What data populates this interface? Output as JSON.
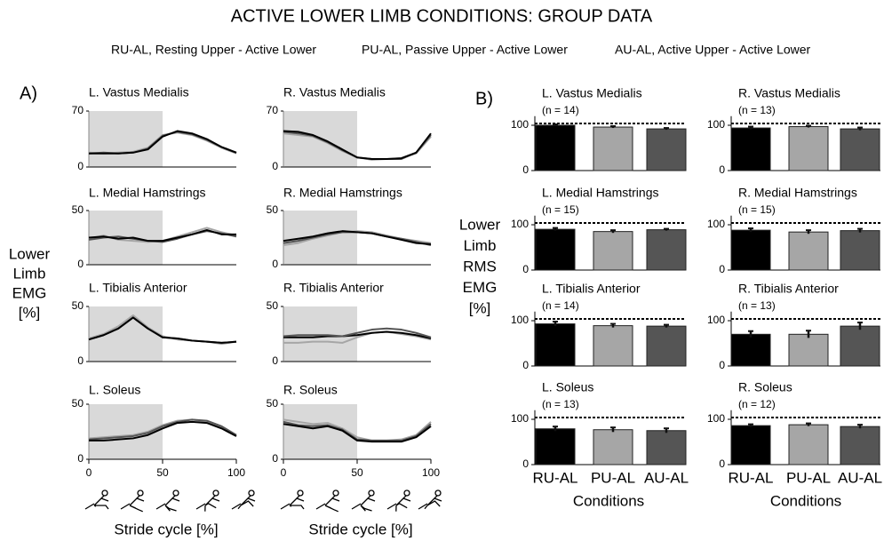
{
  "title": "ACTIVE LOWER LIMB CONDITIONS: GROUP DATA",
  "legend": [
    {
      "name": "RU-AL, Resting Upper - Active Lower",
      "color": "#000000"
    },
    {
      "name": "PU-AL, Passive Upper - Active Lower",
      "color": "#a6a6a6"
    },
    {
      "name": "AU-AL, Active Upper - Active Lower",
      "color": "#555555"
    }
  ],
  "panel_a": {
    "label": "A)",
    "y_label": [
      "Lower",
      "Limb",
      "EMG",
      "[%]"
    ],
    "x_label": "Stride cycle [%]"
  },
  "panel_b": {
    "label": "B)",
    "y_label": [
      "Lower",
      "Limb",
      "RMS",
      "EMG",
      "[%]"
    ],
    "x_label": "Conditions"
  },
  "chart_data": [
    {
      "type": "line",
      "title": "L. Vastus Medialis",
      "x": [
        0,
        10,
        20,
        30,
        40,
        50,
        60,
        70,
        80,
        90,
        100
      ],
      "xlim": [
        0,
        100
      ],
      "ylim": [
        0,
        70
      ],
      "yticks": [
        0,
        70
      ],
      "shade": [
        0,
        50
      ],
      "series": [
        {
          "color": "#a6a6a6",
          "values": [
            18,
            17,
            18,
            19,
            24,
            40,
            43,
            40,
            33,
            24,
            17
          ]
        },
        {
          "color": "#555555",
          "values": [
            17,
            18,
            17,
            18,
            23,
            39,
            44,
            41,
            34,
            25,
            18
          ]
        },
        {
          "color": "#000000",
          "values": [
            17,
            17,
            17,
            18,
            22,
            38,
            45,
            42,
            35,
            25,
            18
          ]
        }
      ]
    },
    {
      "type": "line",
      "title": "R. Vastus Medialis",
      "x": [
        0,
        10,
        20,
        30,
        40,
        50,
        60,
        70,
        80,
        90,
        100
      ],
      "xlim": [
        0,
        100
      ],
      "ylim": [
        0,
        70
      ],
      "yticks": [
        0,
        70
      ],
      "shade": [
        0,
        50
      ],
      "series": [
        {
          "color": "#a6a6a6",
          "values": [
            42,
            40,
            38,
            30,
            20,
            12,
            9,
            10,
            11,
            17,
            38
          ]
        },
        {
          "color": "#555555",
          "values": [
            44,
            42,
            39,
            31,
            21,
            12,
            10,
            10,
            10,
            18,
            40
          ]
        },
        {
          "color": "#000000",
          "values": [
            45,
            44,
            40,
            32,
            22,
            12,
            10,
            10,
            11,
            18,
            42
          ]
        }
      ]
    },
    {
      "type": "line",
      "title": "L. Medial Hamstrings",
      "x": [
        0,
        10,
        20,
        30,
        40,
        50,
        60,
        70,
        80,
        90,
        100
      ],
      "xlim": [
        0,
        100
      ],
      "ylim": [
        0,
        50
      ],
      "yticks": [
        0,
        50
      ],
      "shade": [
        0,
        50
      ],
      "series": [
        {
          "color": "#a6a6a6",
          "values": [
            24,
            27,
            23,
            22,
            21,
            22,
            26,
            30,
            34,
            30,
            27
          ]
        },
        {
          "color": "#555555",
          "values": [
            23,
            25,
            26,
            24,
            22,
            21,
            24,
            28,
            31,
            29,
            26
          ]
        },
        {
          "color": "#000000",
          "values": [
            25,
            26,
            24,
            25,
            22,
            22,
            25,
            28,
            32,
            28,
            28
          ]
        }
      ]
    },
    {
      "type": "line",
      "title": "R. Medial Hamstrings",
      "x": [
        0,
        10,
        20,
        30,
        40,
        50,
        60,
        70,
        80,
        90,
        100
      ],
      "xlim": [
        0,
        100
      ],
      "ylim": [
        0,
        50
      ],
      "yticks": [
        0,
        50
      ],
      "shade": [
        0,
        50
      ],
      "series": [
        {
          "color": "#a6a6a6",
          "values": [
            18,
            20,
            24,
            27,
            30,
            31,
            30,
            27,
            24,
            22,
            20
          ]
        },
        {
          "color": "#555555",
          "values": [
            20,
            22,
            25,
            28,
            30,
            30,
            29,
            26,
            24,
            21,
            18
          ]
        },
        {
          "color": "#000000",
          "values": [
            22,
            24,
            26,
            29,
            31,
            30,
            29,
            26,
            23,
            20,
            19
          ]
        }
      ]
    },
    {
      "type": "line",
      "title": "L. Tibialis Anterior",
      "x": [
        0,
        10,
        20,
        30,
        40,
        50,
        60,
        70,
        80,
        90,
        100
      ],
      "xlim": [
        0,
        100
      ],
      "ylim": [
        0,
        50
      ],
      "yticks": [
        0,
        50
      ],
      "shade": [
        0,
        50
      ],
      "series": [
        {
          "color": "#a6a6a6",
          "values": [
            21,
            25,
            32,
            42,
            31,
            23,
            20,
            19,
            18,
            16,
            18
          ]
        },
        {
          "color": "#555555",
          "values": [
            20,
            24,
            30,
            40,
            30,
            22,
            21,
            19,
            18,
            17,
            18
          ]
        },
        {
          "color": "#000000",
          "values": [
            20,
            24,
            30,
            40,
            30,
            22,
            21,
            19,
            18,
            17,
            18
          ]
        }
      ]
    },
    {
      "type": "line",
      "title": "R. Tibialis Anterior",
      "x": [
        0,
        10,
        20,
        30,
        40,
        50,
        60,
        70,
        80,
        90,
        100
      ],
      "xlim": [
        0,
        100
      ],
      "ylim": [
        0,
        50
      ],
      "yticks": [
        0,
        50
      ],
      "shade": [
        0,
        50
      ],
      "series": [
        {
          "color": "#a6a6a6",
          "values": [
            17,
            17,
            18,
            18,
            17,
            22,
            26,
            27,
            25,
            23,
            20
          ]
        },
        {
          "color": "#000000",
          "values": [
            22,
            22,
            22,
            23,
            23,
            24,
            26,
            27,
            26,
            24,
            21
          ]
        },
        {
          "color": "#555555",
          "values": [
            23,
            24,
            24,
            24,
            23,
            26,
            29,
            30,
            29,
            26,
            22
          ]
        }
      ]
    },
    {
      "type": "line",
      "title": "L. Soleus",
      "x": [
        0,
        10,
        20,
        30,
        40,
        50,
        60,
        70,
        80,
        90,
        100
      ],
      "xlim": [
        0,
        100
      ],
      "ylim": [
        0,
        50
      ],
      "yticks": [
        0,
        50
      ],
      "xticks": [
        0,
        50,
        100
      ],
      "shade": [
        0,
        50
      ],
      "series": [
        {
          "color": "#a6a6a6",
          "values": [
            19,
            20,
            21,
            22,
            25,
            31,
            35,
            36,
            34,
            29,
            22
          ]
        },
        {
          "color": "#555555",
          "values": [
            18,
            19,
            20,
            21,
            24,
            30,
            34,
            36,
            35,
            30,
            22
          ]
        },
        {
          "color": "#000000",
          "values": [
            17,
            17,
            18,
            19,
            22,
            28,
            33,
            34,
            33,
            28,
            21
          ]
        }
      ]
    },
    {
      "type": "line",
      "title": "R. Soleus",
      "x": [
        0,
        10,
        20,
        30,
        40,
        50,
        60,
        70,
        80,
        90,
        100
      ],
      "xlim": [
        0,
        100
      ],
      "ylim": [
        0,
        50
      ],
      "yticks": [
        0,
        50
      ],
      "xticks": [
        0,
        50,
        100
      ],
      "shade": [
        0,
        50
      ],
      "series": [
        {
          "color": "#a6a6a6",
          "values": [
            36,
            34,
            32,
            33,
            28,
            20,
            17,
            17,
            18,
            22,
            34
          ]
        },
        {
          "color": "#555555",
          "values": [
            34,
            31,
            30,
            31,
            27,
            18,
            17,
            17,
            17,
            21,
            32
          ]
        },
        {
          "color": "#000000",
          "values": [
            32,
            30,
            28,
            30,
            26,
            17,
            16,
            16,
            16,
            20,
            30
          ]
        }
      ]
    },
    {
      "type": "bar",
      "title": "L. Vastus Medialis",
      "subtitle": "(n = 14)",
      "values": [
        100,
        96,
        92
      ],
      "errors": [
        2,
        2,
        2
      ],
      "colors": [
        "#000000",
        "#a6a6a6",
        "#555555"
      ],
      "ylim": [
        0,
        120
      ],
      "yticks": [
        0,
        100
      ],
      "reference": 100
    },
    {
      "type": "bar",
      "title": "R. Vastus Medialis",
      "subtitle": "(n = 13)",
      "values": [
        94,
        97,
        92
      ],
      "errors": [
        3,
        2,
        3
      ],
      "colors": [
        "#000000",
        "#a6a6a6",
        "#555555"
      ],
      "ylim": [
        0,
        120
      ],
      "yticks": [
        0,
        100
      ],
      "reference": 100
    },
    {
      "type": "bar",
      "title": "L. Medial Hamstrings",
      "subtitle": "(n = 15)",
      "values": [
        90,
        85,
        89
      ],
      "errors": [
        3,
        3,
        2
      ],
      "colors": [
        "#000000",
        "#a6a6a6",
        "#555555"
      ],
      "ylim": [
        0,
        120
      ],
      "yticks": [
        0,
        100
      ],
      "reference": 100
    },
    {
      "type": "bar",
      "title": "R. Medial Hamstrings",
      "subtitle": "(n = 15)",
      "values": [
        88,
        84,
        87
      ],
      "errors": [
        4,
        4,
        4
      ],
      "colors": [
        "#000000",
        "#a6a6a6",
        "#555555"
      ],
      "ylim": [
        0,
        120
      ],
      "yticks": [
        0,
        100
      ],
      "reference": 100
    },
    {
      "type": "bar",
      "title": "L. Tibialis Anterior",
      "subtitle": "(n = 14)",
      "values": [
        93,
        89,
        88
      ],
      "errors": [
        5,
        4,
        3
      ],
      "colors": [
        "#000000",
        "#a6a6a6",
        "#555555"
      ],
      "ylim": [
        0,
        120
      ],
      "yticks": [
        0,
        100
      ],
      "reference": 100
    },
    {
      "type": "bar",
      "title": "R. Tibialis Anterior",
      "subtitle": "(n = 13)",
      "values": [
        70,
        70,
        88
      ],
      "errors": [
        7,
        8,
        8
      ],
      "colors": [
        "#000000",
        "#a6a6a6",
        "#555555"
      ],
      "ylim": [
        0,
        120
      ],
      "yticks": [
        0,
        100
      ],
      "reference": 100
    },
    {
      "type": "bar",
      "title": "L. Soleus",
      "subtitle": "(n = 13)",
      "categories": [
        "RU-AL",
        "PU-AL",
        "AU-AL"
      ],
      "values": [
        79,
        77,
        75
      ],
      "errors": [
        5,
        5,
        5
      ],
      "colors": [
        "#000000",
        "#a6a6a6",
        "#555555"
      ],
      "ylim": [
        0,
        120
      ],
      "yticks": [
        0,
        100
      ],
      "reference": 100
    },
    {
      "type": "bar",
      "title": "R. Soleus",
      "subtitle": "(n = 12)",
      "categories": [
        "RU-AL",
        "PU-AL",
        "AU-AL"
      ],
      "values": [
        86,
        88,
        84
      ],
      "errors": [
        3,
        3,
        4
      ],
      "colors": [
        "#000000",
        "#a6a6a6",
        "#555555"
      ],
      "ylim": [
        0,
        120
      ],
      "yticks": [
        0,
        100
      ],
      "reference": 100
    }
  ]
}
